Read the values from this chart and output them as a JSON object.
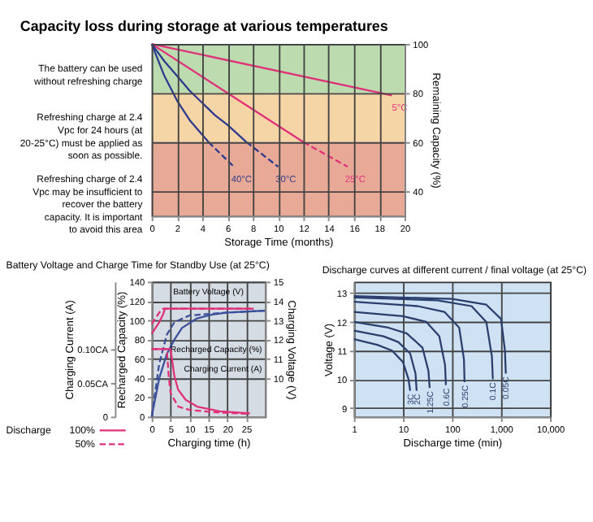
{
  "chart_data": [
    {
      "type": "line",
      "title": "Capacity loss during storage at various temperatures",
      "xlabel": "Storage Time (months)",
      "ylabel": "Remaining Capacity (%)",
      "xlim": [
        0,
        20
      ],
      "xticks": [
        0,
        2,
        4,
        6,
        8,
        10,
        12,
        14,
        16,
        18,
        20
      ],
      "ylim": [
        30,
        100
      ],
      "yticks": [
        40,
        60,
        80,
        100
      ],
      "grid": true,
      "legend": false,
      "bands": [
        {
          "axis": "y",
          "from": 80,
          "to": 100,
          "color": "#bcdcb0",
          "label": "The battery can be used without refreshing charge"
        },
        {
          "axis": "y",
          "from": 60,
          "to": 80,
          "color": "#f5d4a6",
          "label": "Refreshing charge at 2.4 Vpc for 24 hours (at 20-25°C) must be applied as soon as possible."
        },
        {
          "axis": "y",
          "from": 30,
          "to": 60,
          "color": "#e9a997",
          "label": "Refreshing charge of 2.4 Vpc may be insufficient to recover the battery capacity. It is important to avoid this area"
        }
      ],
      "series": [
        {
          "name": "5°C",
          "color": "#e0307a",
          "line_style": "solid",
          "x": [
            0,
            19
          ],
          "values": [
            100,
            79
          ]
        },
        {
          "color": "#e0307a",
          "line_style": "solid",
          "x": [
            0,
            12
          ],
          "values": [
            100,
            60
          ]
        },
        {
          "name": "25°C",
          "color": "#e0307a",
          "line_style": "dashed",
          "x": [
            12,
            15.5
          ],
          "values": [
            60,
            50
          ]
        },
        {
          "color": "#2b3a8c",
          "line_style": "solid",
          "x": [
            0,
            1,
            2,
            3,
            4,
            5,
            6,
            7.5
          ],
          "values": [
            100,
            93,
            87,
            81,
            76,
            71,
            67,
            60
          ]
        },
        {
          "name": "30°C",
          "color": "#2b3a8c",
          "line_style": "dashed",
          "x": [
            7.5,
            10
          ],
          "values": [
            60,
            50
          ]
        },
        {
          "color": "#2b3a8c",
          "line_style": "solid",
          "x": [
            0,
            1,
            2,
            3,
            4.5
          ],
          "values": [
            100,
            87,
            77,
            69,
            60
          ]
        },
        {
          "name": "40°C",
          "color": "#2b3a8c",
          "line_style": "dashed",
          "x": [
            4.5,
            6.5
          ],
          "values": [
            60,
            50
          ]
        }
      ]
    },
    {
      "type": "line",
      "title": "Battery Voltage and Charge Time for Standby Use (at 25°C)",
      "xlabel": "Charging time (h)",
      "ylabel": "Recharged Capacity (%)",
      "y2label": "Charging Current (A)",
      "y3label": "Charging Voltage (V)",
      "xlim": [
        0,
        30
      ],
      "xticks": [
        0,
        5,
        10,
        15,
        20,
        25
      ],
      "ylim": [
        0,
        140
      ],
      "yticks": [
        0,
        20,
        40,
        60,
        80,
        100,
        120,
        140
      ],
      "y2lim": [
        0,
        0.2
      ],
      "y2ticks": [
        {
          "value": 0,
          "label": "0"
        },
        {
          "value": 0.05,
          "label": "0.05CA"
        },
        {
          "value": 0.1,
          "label": "0.10CA"
        }
      ],
      "y3lim": [
        8,
        15
      ],
      "y3ticks": [
        10,
        11,
        12,
        13,
        14,
        15
      ],
      "grid": true,
      "legend": "bottom left",
      "legend_title": "Discharge",
      "annotations": [
        "Battery Voltage (V)",
        "Recharged Capacity (%)",
        "Charging Current (A)"
      ],
      "series": [
        {
          "name": "100%",
          "axis": "y3",
          "color": "#e0307a",
          "line_style": "solid",
          "x": [
            0,
            1,
            2,
            3,
            3.5,
            27
          ],
          "values": [
            12.3,
            12.6,
            12.9,
            13.3,
            13.6,
            13.6
          ]
        },
        {
          "name": "50%",
          "axis": "y3",
          "color": "#e0307a",
          "line_style": "dashed",
          "x": [
            0,
            1,
            2,
            3,
            27
          ],
          "values": [
            12.8,
            13.1,
            13.4,
            13.6,
            13.6
          ]
        },
        {
          "color": "#3b4f9a",
          "line_style": "solid",
          "x": [
            0,
            2,
            4,
            6,
            8,
            12,
            16,
            20,
            30
          ],
          "values": [
            0,
            40,
            65,
            80,
            92,
            102,
            106,
            108,
            110
          ]
        },
        {
          "color": "#3b4f9a",
          "line_style": "dashed",
          "x": [
            0,
            2,
            4,
            6,
            10,
            20,
            30
          ],
          "values": [
            0,
            55,
            85,
            98,
            105,
            108,
            110
          ]
        },
        {
          "axis": "y2",
          "color": "#e0307a",
          "line_style": "solid",
          "x": [
            0,
            5,
            5.5,
            6,
            7,
            9,
            12,
            18,
            26
          ],
          "values": [
            0.1,
            0.1,
            0.08,
            0.06,
            0.04,
            0.025,
            0.015,
            0.008,
            0.005
          ]
        },
        {
          "axis": "y2",
          "color": "#e0307a",
          "line_style": "dashed",
          "x": [
            0,
            4,
            4.5,
            5,
            7,
            10,
            18,
            26
          ],
          "values": [
            0.1,
            0.1,
            0.06,
            0.035,
            0.015,
            0.01,
            0.006,
            0.004
          ]
        }
      ]
    },
    {
      "type": "line",
      "title": "Discharge curves at different current / final voltage (at 25°C)",
      "xlabel": "Discharge time (min)",
      "ylabel": "Voltage (V)",
      "log": "x",
      "xlim": [
        1,
        10000
      ],
      "xticks": [
        1,
        10,
        100,
        {
          "value": 1000,
          "label": "1,000"
        },
        {
          "value": 10000,
          "label": "10,000"
        }
      ],
      "ylim": [
        8.7,
        13.4
      ],
      "yticks": [
        9,
        10,
        11,
        12,
        13
      ],
      "grid": true,
      "legend": false,
      "line_style": "solid",
      "series": [
        {
          "name": "3C",
          "color": "#2b3f6e",
          "x": [
            1,
            3,
            6,
            10,
            13,
            14
          ],
          "values": [
            11.4,
            11.2,
            11.0,
            10.6,
            10.0,
            9.6
          ]
        },
        {
          "name": "2C",
          "color": "#2b3f6e",
          "x": [
            1,
            4,
            8,
            14,
            18,
            19
          ],
          "values": [
            11.7,
            11.5,
            11.3,
            10.9,
            10.2,
            9.6
          ]
        },
        {
          "name": "1.25C",
          "color": "#2b3f6e",
          "x": [
            1,
            5,
            12,
            25,
            33,
            35
          ],
          "values": [
            12.0,
            11.8,
            11.6,
            11.1,
            10.3,
            9.7
          ]
        },
        {
          "name": "0.6C",
          "color": "#2b3f6e",
          "x": [
            1,
            10,
            30,
            55,
            72,
            75
          ],
          "values": [
            12.35,
            12.2,
            12.0,
            11.5,
            10.5,
            9.8
          ]
        },
        {
          "name": "0.25C",
          "color": "#2b3f6e",
          "x": [
            1,
            20,
            70,
            140,
            175,
            180
          ],
          "values": [
            12.7,
            12.55,
            12.35,
            11.8,
            10.7,
            9.9
          ]
        },
        {
          "name": "0.1C",
          "color": "#2b3f6e",
          "x": [
            1,
            50,
            250,
            500,
            650,
            680
          ],
          "values": [
            12.85,
            12.75,
            12.55,
            12.0,
            10.8,
            10.0
          ]
        },
        {
          "name": "0.05C",
          "color": "#2b3f6e",
          "x": [
            1,
            100,
            500,
            1000,
            1200,
            1250
          ],
          "values": [
            12.9,
            12.8,
            12.6,
            12.1,
            11.0,
            10.2
          ]
        }
      ]
    }
  ]
}
